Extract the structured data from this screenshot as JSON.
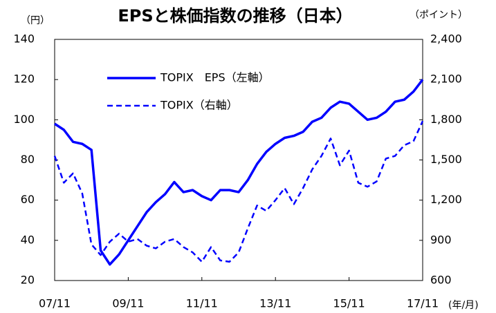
{
  "chart_data": {
    "type": "line",
    "title": "EPSと株価指数の推移（日本）",
    "y_label": "（円）",
    "y2_label": "（ポイント）",
    "x_label": "(年/月)",
    "categories": [
      "07/11",
      null,
      null,
      null,
      null,
      null,
      null,
      null,
      "09/11",
      null,
      null,
      null,
      null,
      null,
      null,
      null,
      "11/11",
      null,
      null,
      null,
      null,
      null,
      null,
      null,
      "13/11",
      null,
      null,
      null,
      null,
      null,
      null,
      null,
      "15/11",
      null,
      null,
      null,
      null,
      null,
      null,
      null,
      "17/11"
    ],
    "series": [
      {
        "name": "TOPIX　EPS（左軸）",
        "color": "#0000ff",
        "style": "solid",
        "values": [
          98,
          95,
          89,
          88,
          85,
          35,
          28,
          33,
          40,
          47,
          54,
          59,
          63,
          69,
          64,
          65,
          62,
          60,
          65,
          65,
          64,
          70,
          78,
          84,
          88,
          91,
          92,
          94,
          99,
          101,
          106,
          109,
          108,
          104,
          100,
          101,
          104,
          109,
          110,
          114,
          120
        ]
      },
      {
        "name": "TOPIX（右軸）",
        "color": "#0000ff",
        "style": "dashed",
        "axis": "y2",
        "values": [
          1530,
          1330,
          1400,
          1250,
          870,
          790,
          890,
          950,
          890,
          910,
          860,
          840,
          890,
          910,
          850,
          810,
          740,
          850,
          750,
          740,
          810,
          990,
          1160,
          1120,
          1200,
          1290,
          1170,
          1290,
          1430,
          1530,
          1660,
          1460,
          1570,
          1330,
          1300,
          1340,
          1510,
          1530,
          1610,
          1640,
          1790
        ]
      }
    ],
    "ylim": [
      20,
      140
    ],
    "yticks": [
      20,
      40,
      60,
      80,
      100,
      120,
      140
    ],
    "y2lim": [
      600,
      2400
    ],
    "y2ticks": [
      600,
      900,
      {
        "value": 1200,
        "label": "1,200"
      },
      {
        "value": 1500,
        "label": "1,500"
      },
      {
        "value": 1800,
        "label": "1,800"
      },
      {
        "value": 2100,
        "label": "2,100"
      },
      {
        "value": 2400,
        "label": "2,400"
      }
    ],
    "grid": false,
    "legend": "upper left"
  }
}
